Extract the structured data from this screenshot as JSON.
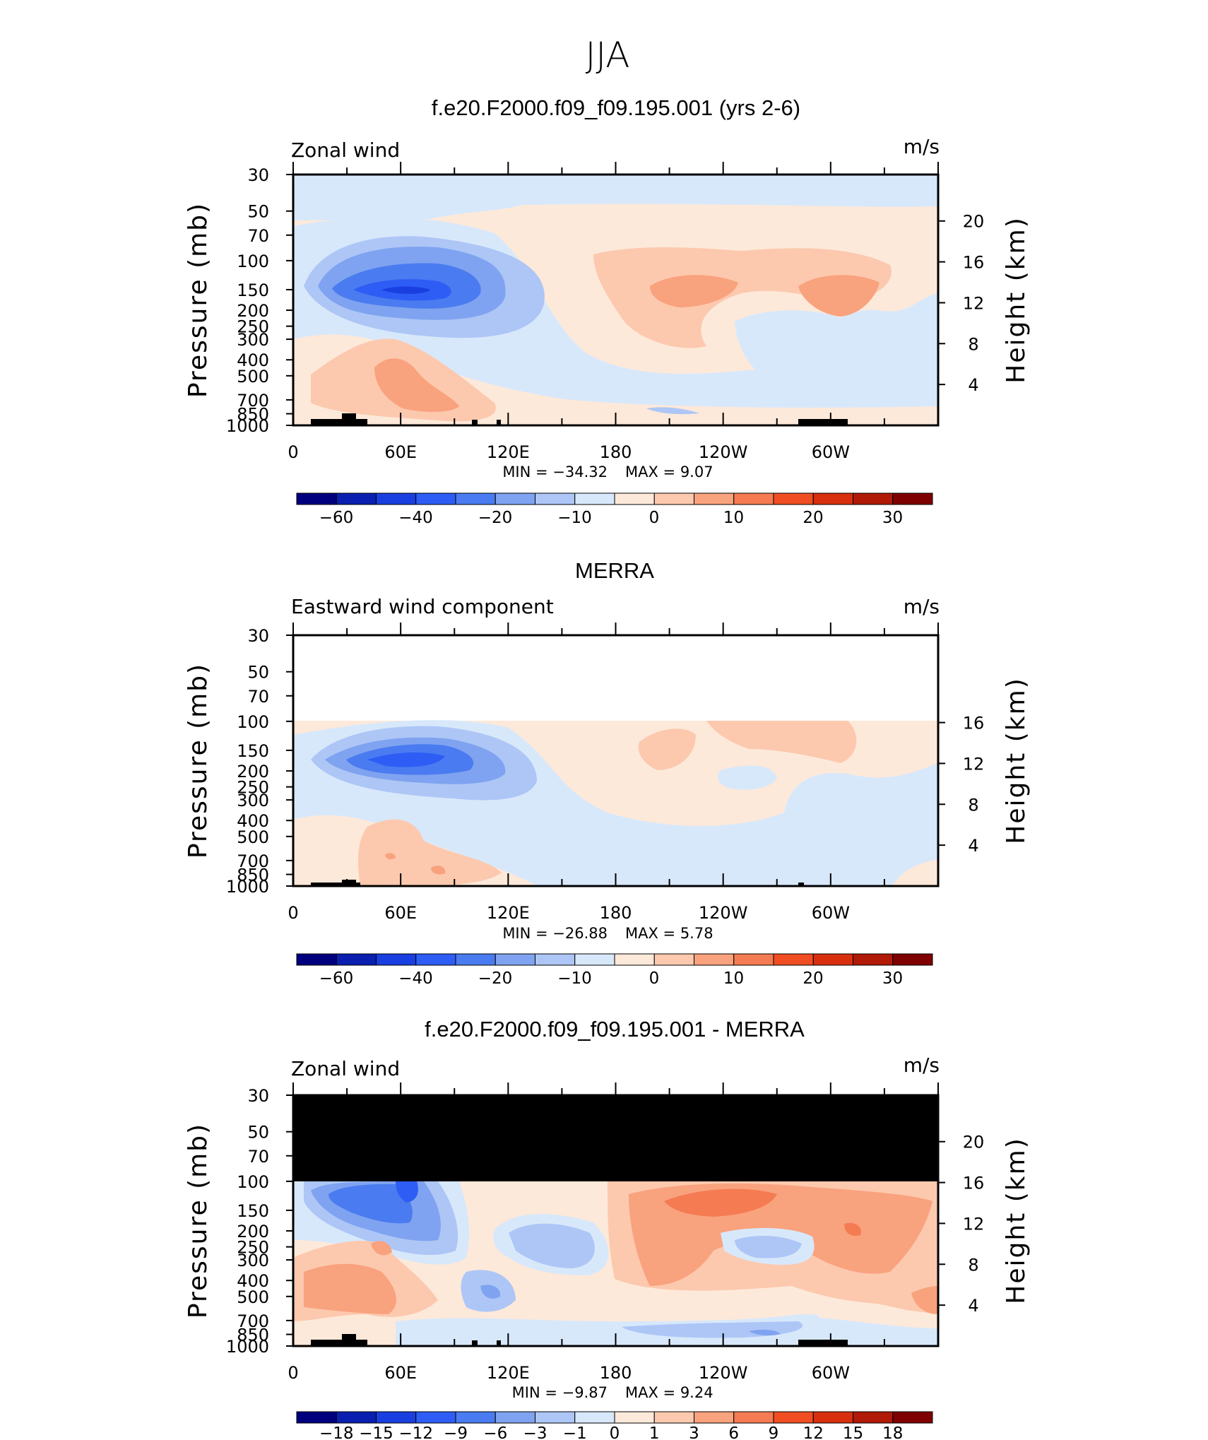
{
  "page": {
    "title": "JJA"
  },
  "chart_data": [
    {
      "type": "heatmap",
      "title": "f.e20.F2000.f09_f09.195.001 (yrs 2-6)",
      "left_label": "Zonal wind",
      "units": "m/s",
      "ylabel": "Pressure (mb)",
      "ylabel_right": "Height (km)",
      "x_ticks": [
        "0",
        "60E",
        "120E",
        "180",
        "120W",
        "60W"
      ],
      "y_ticks": [
        "30",
        "50",
        "70",
        "100",
        "150",
        "200",
        "250",
        "300",
        "400",
        "500",
        "700",
        "850",
        "1000"
      ],
      "y_ticks_right": [
        "20",
        "16",
        "12",
        "8",
        "4"
      ],
      "min_label": "MIN = −34.32",
      "max_label": "MAX = 9.07",
      "min": -34.32,
      "max": 9.07,
      "colorbar_labels": [
        "−60",
        "−40",
        "−20",
        "−10",
        "0",
        "10",
        "20",
        "30"
      ],
      "colorbar_colors": [
        "#00007f",
        "#0a1fb0",
        "#1a3fe0",
        "#2e5df5",
        "#4a7bf0",
        "#7fa3f0",
        "#adc6f6",
        "#d8e8fb",
        "#fde9da",
        "#fcc9ae",
        "#f9a27e",
        "#f57b52",
        "#f04e22",
        "#d8300e",
        "#b01a06",
        "#7f0000"
      ],
      "masked_top": false
    },
    {
      "type": "heatmap",
      "title": "MERRA",
      "left_label": "Eastward wind component",
      "units": "m/s",
      "ylabel": "Pressure (mb)",
      "ylabel_right": "Height (km)",
      "x_ticks": [
        "0",
        "60E",
        "120E",
        "180",
        "120W",
        "60W"
      ],
      "y_ticks": [
        "30",
        "50",
        "70",
        "100",
        "150",
        "200",
        "250",
        "300",
        "400",
        "500",
        "700",
        "850",
        "1000"
      ],
      "y_ticks_right": [
        "16",
        "12",
        "8",
        "4"
      ],
      "min_label": "MIN = −26.88",
      "max_label": "MAX = 5.78",
      "min": -26.88,
      "max": 5.78,
      "colorbar_labels": [
        "−60",
        "−40",
        "−20",
        "−10",
        "0",
        "10",
        "20",
        "30"
      ],
      "colorbar_colors": [
        "#00007f",
        "#0a1fb0",
        "#1a3fe0",
        "#2e5df5",
        "#4a7bf0",
        "#7fa3f0",
        "#adc6f6",
        "#d8e8fb",
        "#fde9da",
        "#fcc9ae",
        "#f9a27e",
        "#f57b52",
        "#f04e22",
        "#d8300e",
        "#b01a06",
        "#7f0000"
      ],
      "masked_top": false
    },
    {
      "type": "heatmap",
      "title": "f.e20.F2000.f09_f09.195.001 - MERRA",
      "left_label": "Zonal wind",
      "units": "m/s",
      "ylabel": "Pressure (mb)",
      "ylabel_right": "Height (km)",
      "x_ticks": [
        "0",
        "60E",
        "120E",
        "180",
        "120W",
        "60W"
      ],
      "y_ticks": [
        "30",
        "50",
        "70",
        "100",
        "150",
        "200",
        "250",
        "300",
        "400",
        "500",
        "700",
        "850",
        "1000"
      ],
      "y_ticks_right": [
        "20",
        "16",
        "12",
        "8",
        "4"
      ],
      "min_label": "MIN = −9.87",
      "max_label": "MAX = 9.24",
      "min": -9.87,
      "max": 9.24,
      "colorbar_labels": [
        "−18",
        "−15",
        "−12",
        "−9",
        "−6",
        "−3",
        "−1",
        "0",
        "1",
        "3",
        "6",
        "9",
        "12",
        "15",
        "18"
      ],
      "colorbar_colors": [
        "#00007f",
        "#0a1fb0",
        "#1a3fe0",
        "#2e5df5",
        "#4a7bf0",
        "#7fa3f0",
        "#adc6f6",
        "#d8e8fb",
        "#fde9da",
        "#fcc9ae",
        "#f9a27e",
        "#f57b52",
        "#f04e22",
        "#d8300e",
        "#b01a06",
        "#7f0000"
      ],
      "masked_top": true
    }
  ]
}
